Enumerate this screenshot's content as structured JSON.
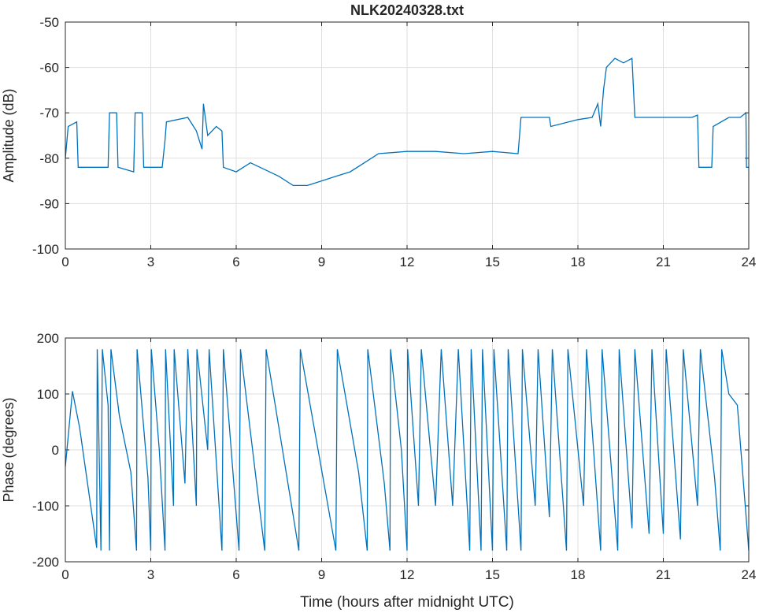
{
  "chart_data": [
    {
      "type": "line",
      "title": "NLK20240328.txt",
      "xlabel": "",
      "ylabel": "Amplitude (dB)",
      "xlim": [
        0,
        24
      ],
      "ylim": [
        -100,
        -50
      ],
      "xticks": [
        0,
        3,
        6,
        9,
        12,
        15,
        18,
        21,
        24
      ],
      "yticks": [
        -100,
        -90,
        -80,
        -70,
        -60,
        -50
      ],
      "grid": true,
      "color": "#0072BD",
      "series": [
        {
          "name": "Amplitude",
          "points": [
            [
              0,
              -80
            ],
            [
              0.1,
              -73
            ],
            [
              0.4,
              -72
            ],
            [
              0.45,
              -82
            ],
            [
              1.5,
              -82
            ],
            [
              1.55,
              -70
            ],
            [
              1.8,
              -70
            ],
            [
              1.85,
              -82
            ],
            [
              2.4,
              -83
            ],
            [
              2.45,
              -70
            ],
            [
              2.7,
              -70
            ],
            [
              2.75,
              -82
            ],
            [
              3.4,
              -82
            ],
            [
              3.5,
              -76
            ],
            [
              3.55,
              -72
            ],
            [
              4.3,
              -71
            ],
            [
              4.6,
              -74
            ],
            [
              4.8,
              -78
            ],
            [
              4.85,
              -68
            ],
            [
              5.0,
              -75
            ],
            [
              5.3,
              -73
            ],
            [
              5.5,
              -74
            ],
            [
              5.55,
              -82
            ],
            [
              6,
              -83
            ],
            [
              6.5,
              -81
            ],
            [
              7,
              -82.5
            ],
            [
              7.5,
              -84
            ],
            [
              8,
              -86
            ],
            [
              8.5,
              -86
            ],
            [
              9,
              -85
            ],
            [
              9.5,
              -84
            ],
            [
              10,
              -83
            ],
            [
              10.5,
              -81
            ],
            [
              11,
              -79
            ],
            [
              12,
              -78.5
            ],
            [
              13,
              -78.5
            ],
            [
              14,
              -79
            ],
            [
              15,
              -78.5
            ],
            [
              15.9,
              -79
            ],
            [
              16,
              -71
            ],
            [
              17,
              -71
            ],
            [
              17.05,
              -73
            ],
            [
              18,
              -71.5
            ],
            [
              18.5,
              -71
            ],
            [
              18.7,
              -68
            ],
            [
              18.8,
              -73
            ],
            [
              18.9,
              -65
            ],
            [
              19,
              -60
            ],
            [
              19.3,
              -58
            ],
            [
              19.6,
              -59
            ],
            [
              19.9,
              -58
            ],
            [
              20,
              -71
            ],
            [
              21,
              -71
            ],
            [
              22,
              -71
            ],
            [
              22.2,
              -70.5
            ],
            [
              22.25,
              -82
            ],
            [
              22.7,
              -82
            ],
            [
              22.75,
              -73
            ],
            [
              23.3,
              -71
            ],
            [
              23.7,
              -71
            ],
            [
              23.9,
              -70
            ],
            [
              23.92,
              -82
            ],
            [
              24,
              -82
            ]
          ]
        }
      ]
    },
    {
      "type": "line",
      "title": "",
      "xlabel": "Time (hours after midnight UTC)",
      "ylabel": "Phase (degrees)",
      "xlim": [
        0,
        24
      ],
      "ylim": [
        -200,
        200
      ],
      "xticks": [
        0,
        3,
        6,
        9,
        12,
        15,
        18,
        21,
        24
      ],
      "yticks": [
        -200,
        -100,
        0,
        100,
        200
      ],
      "grid": true,
      "color": "#0072BD",
      "series": [
        {
          "name": "Phase",
          "points": [
            [
              0,
              -30
            ],
            [
              0.25,
              105
            ],
            [
              0.5,
              40
            ],
            [
              1.1,
              -175
            ],
            [
              1.12,
              180
            ],
            [
              1.25,
              -180
            ],
            [
              1.3,
              180
            ],
            [
              1.5,
              80
            ],
            [
              1.55,
              -180
            ],
            [
              1.6,
              180
            ],
            [
              1.9,
              60
            ],
            [
              2.3,
              -40
            ],
            [
              2.5,
              -180
            ],
            [
              2.52,
              180
            ],
            [
              2.9,
              -50
            ],
            [
              3.0,
              -180
            ],
            [
              3.02,
              180
            ],
            [
              3.3,
              0
            ],
            [
              3.5,
              -180
            ],
            [
              3.52,
              180
            ],
            [
              3.8,
              -100
            ],
            [
              3.82,
              180
            ],
            [
              4.2,
              -60
            ],
            [
              4.3,
              180
            ],
            [
              4.6,
              -100
            ],
            [
              4.62,
              180
            ],
            [
              5.0,
              0
            ],
            [
              5.05,
              180
            ],
            [
              5.5,
              -180
            ],
            [
              5.55,
              180
            ],
            [
              6.1,
              -180
            ],
            [
              6.15,
              180
            ],
            [
              7.0,
              -180
            ],
            [
              7.05,
              180
            ],
            [
              8.2,
              -180
            ],
            [
              8.25,
              180
            ],
            [
              9.5,
              -180
            ],
            [
              9.55,
              180
            ],
            [
              10.3,
              -40
            ],
            [
              10.6,
              -180
            ],
            [
              10.62,
              180
            ],
            [
              11.2,
              -60
            ],
            [
              11.4,
              -180
            ],
            [
              11.42,
              180
            ],
            [
              11.8,
              0
            ],
            [
              12,
              -180
            ],
            [
              12.02,
              180
            ],
            [
              12.4,
              -100
            ],
            [
              12.5,
              180
            ],
            [
              13,
              -100
            ],
            [
              13.2,
              180
            ],
            [
              13.6,
              -100
            ],
            [
              13.8,
              180
            ],
            [
              14.2,
              -180
            ],
            [
              14.25,
              180
            ],
            [
              14.6,
              -180
            ],
            [
              14.65,
              180
            ],
            [
              15,
              -180
            ],
            [
              15.05,
              180
            ],
            [
              15.5,
              -180
            ],
            [
              15.55,
              180
            ],
            [
              16,
              -180
            ],
            [
              16.05,
              180
            ],
            [
              16.5,
              -100
            ],
            [
              16.6,
              180
            ],
            [
              17,
              -120
            ],
            [
              17.1,
              180
            ],
            [
              17.6,
              -180
            ],
            [
              17.65,
              180
            ],
            [
              18.2,
              -100
            ],
            [
              18.3,
              180
            ],
            [
              18.8,
              -180
            ],
            [
              18.85,
              180
            ],
            [
              19.4,
              -180
            ],
            [
              19.45,
              180
            ],
            [
              19.9,
              -140
            ],
            [
              20,
              180
            ],
            [
              20.5,
              -150
            ],
            [
              20.6,
              180
            ],
            [
              21,
              -150
            ],
            [
              21.1,
              180
            ],
            [
              21.6,
              -160
            ],
            [
              21.7,
              180
            ],
            [
              22.2,
              -100
            ],
            [
              22.3,
              180
            ],
            [
              22.8,
              -50
            ],
            [
              23,
              -180
            ],
            [
              23.05,
              180
            ],
            [
              23.3,
              100
            ],
            [
              23.6,
              80
            ],
            [
              24,
              -180
            ]
          ]
        }
      ]
    }
  ]
}
